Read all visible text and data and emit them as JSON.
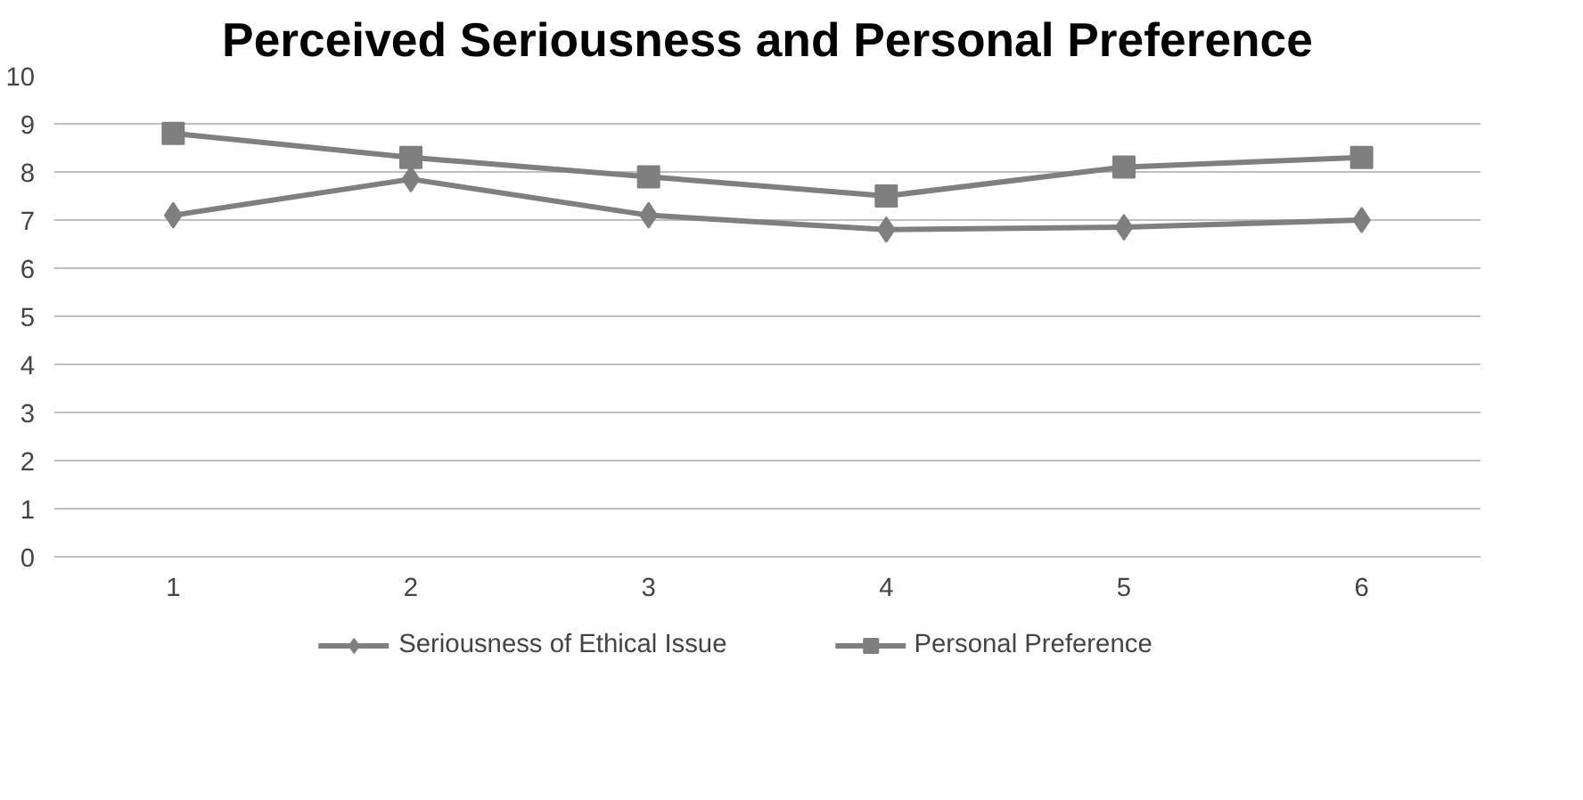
{
  "chart_data": {
    "type": "line",
    "title": "Perceived Seriousness and Personal Preference",
    "categories": [
      "1",
      "2",
      "3",
      "4",
      "5",
      "6"
    ],
    "series": [
      {
        "name": "Seriousness of Ethical Issue",
        "color": "#7f7f7f",
        "marker": "diamond",
        "values": [
          7.1,
          7.85,
          7.1,
          6.8,
          6.85,
          7.0
        ]
      },
      {
        "name": "Personal Preference",
        "color": "#7f7f7f",
        "marker": "square",
        "values": [
          8.8,
          8.3,
          7.9,
          7.5,
          8.1,
          8.3
        ]
      }
    ],
    "ylim": [
      0,
      10
    ],
    "yticks": [
      0,
      1,
      2,
      3,
      4,
      5,
      6,
      7,
      8,
      9,
      10
    ],
    "grid": "y",
    "legend": "bottom",
    "line_style": "solid"
  }
}
